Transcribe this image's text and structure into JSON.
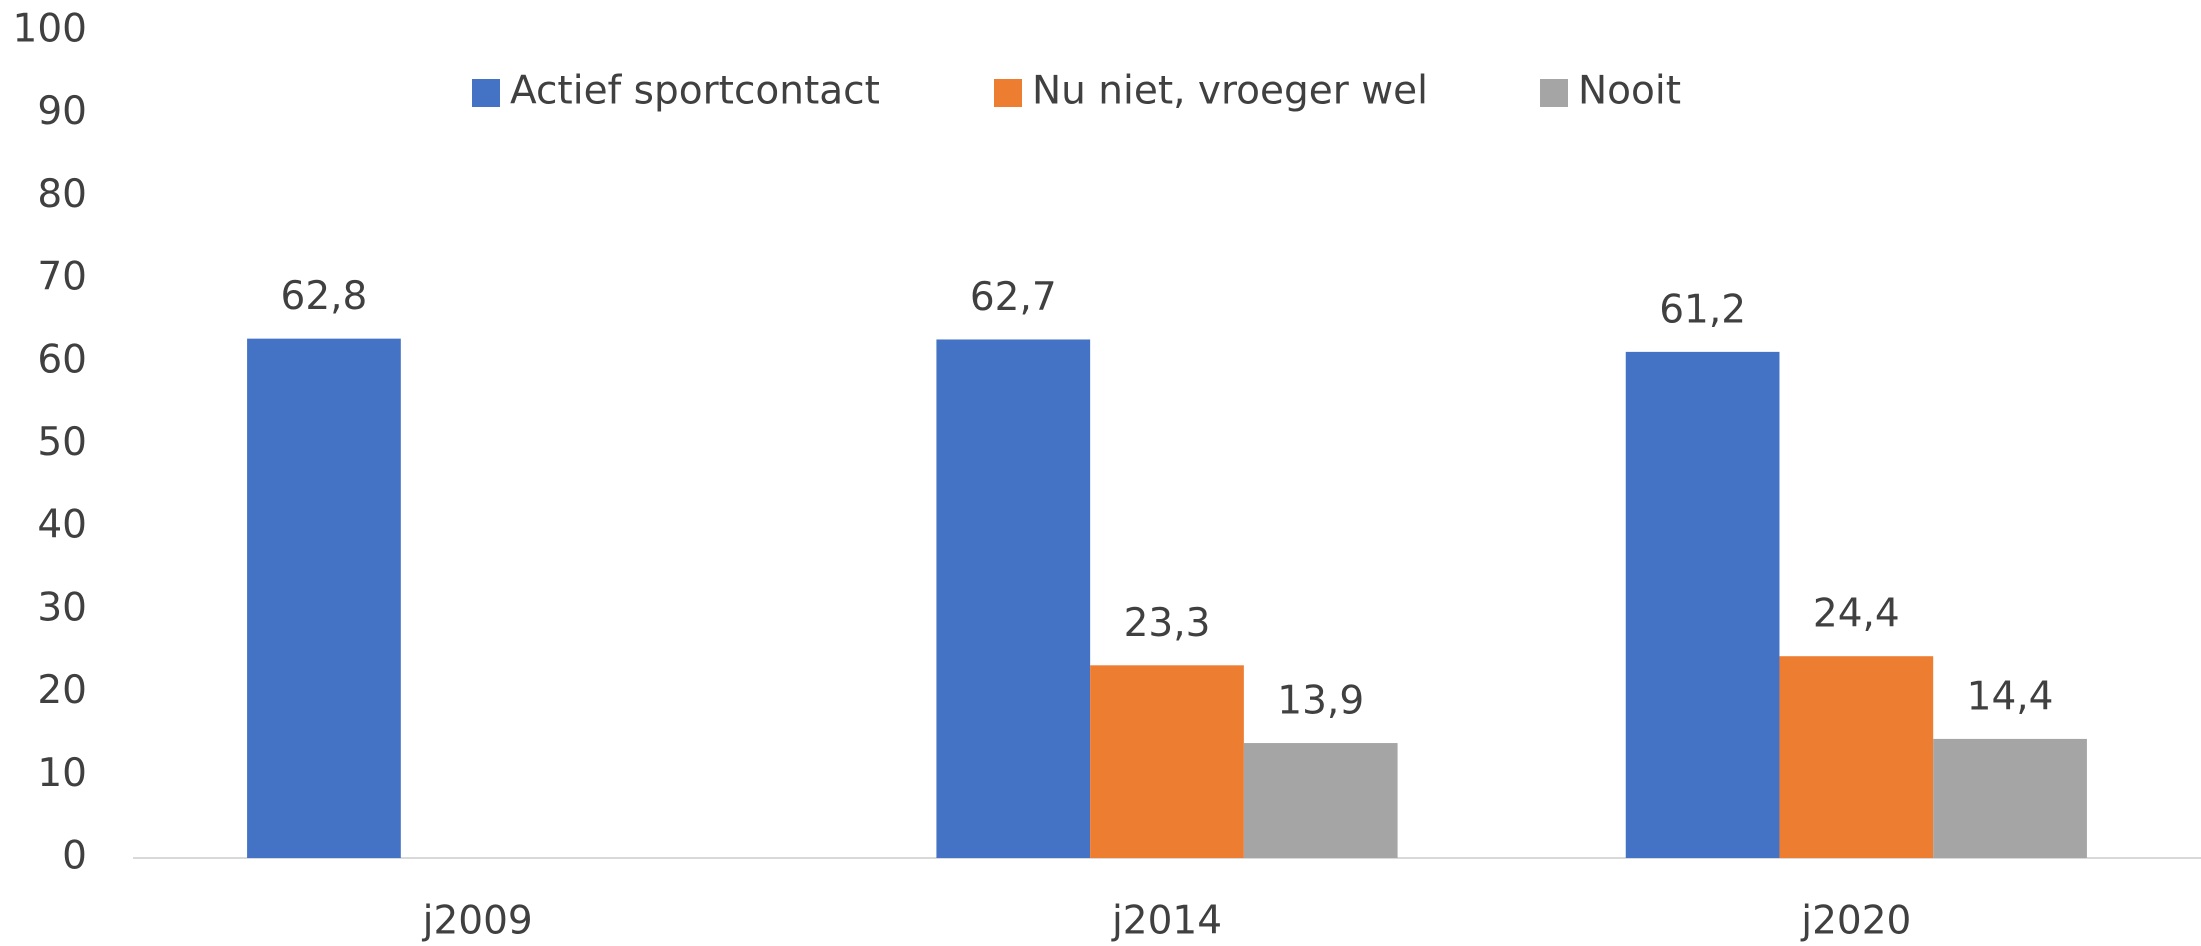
{
  "chart_data": {
    "type": "bar",
    "categories": [
      "j2009",
      "j2014",
      "j2020"
    ],
    "series": [
      {
        "name": "Actief sportcontact",
        "color": "#4472c4",
        "values": [
          62.8,
          62.7,
          61.2
        ],
        "value_labels": [
          "62,8",
          "62,7",
          "61,2"
        ]
      },
      {
        "name": "Nu niet, vroeger wel",
        "color": "#ed7d31",
        "values": [
          null,
          23.3,
          24.4
        ],
        "value_labels": [
          null,
          "23,3",
          "24,4"
        ]
      },
      {
        "name": "Nooit",
        "color": "#a5a5a5",
        "values": [
          null,
          13.9,
          14.4
        ],
        "value_labels": [
          null,
          "13,9",
          "14,4"
        ]
      }
    ],
    "ylim": [
      0,
      100
    ],
    "yticks": [
      0,
      10,
      20,
      30,
      40,
      50,
      60,
      70,
      80,
      90,
      100
    ],
    "grid": false,
    "legend": "top"
  }
}
